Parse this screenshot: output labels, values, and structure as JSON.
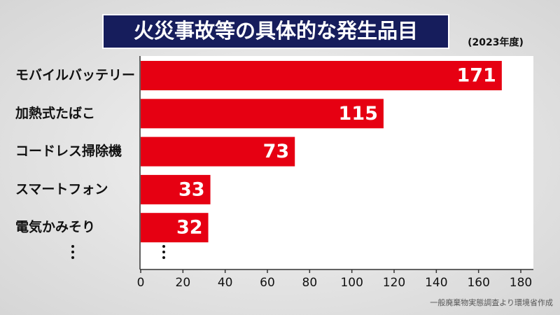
{
  "chart_data": {
    "type": "bar",
    "orientation": "horizontal",
    "title": "火災事故等の具体的な発生品目",
    "subtitle": "(2023年度)",
    "source": "一般廃棄物実態調査より環境省作成",
    "categories": [
      "モバイルバッテリー",
      "加熱式たばこ",
      "コードレス掃除機",
      "スマートフォン",
      "電気かみそり"
    ],
    "values": [
      171,
      115,
      73,
      33,
      32
    ],
    "color": "#e60012",
    "xlim": [
      0,
      180
    ],
    "xticks": [
      0,
      20,
      40,
      60,
      80,
      100,
      120,
      140,
      160,
      180
    ]
  }
}
